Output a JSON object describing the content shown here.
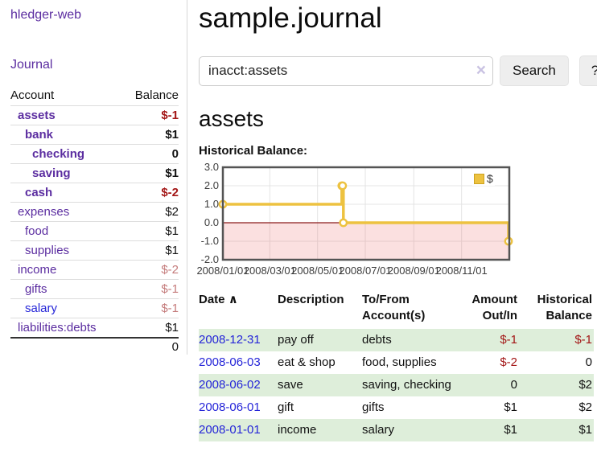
{
  "colors": {
    "accent_purple": "#5b2da0",
    "link_blue": "#2525d8",
    "negative_strong": "#a31616",
    "negative_soft": "#c47a7a",
    "row_stripe_green": "#deeeda",
    "button_bg": "#eeeeee",
    "chart_line": "#edc240",
    "chart_negative_fill": "#f8d8d8",
    "chart_zero_line": "#8b1a1a",
    "chart_border": "#545454"
  },
  "sidebar": {
    "brand": "hledger-web",
    "journal_link": "Journal",
    "account_header": "Account",
    "balance_header": "Balance",
    "accounts": [
      {
        "name": "assets",
        "balance": "$-1"
      },
      {
        "name": "bank",
        "balance": "$1"
      },
      {
        "name": "checking",
        "balance": "0"
      },
      {
        "name": "saving",
        "balance": "$1"
      },
      {
        "name": "cash",
        "balance": "$-2"
      },
      {
        "name": "expenses",
        "balance": "$2"
      },
      {
        "name": "food",
        "balance": "$1"
      },
      {
        "name": "supplies",
        "balance": "$1"
      },
      {
        "name": "income",
        "balance": "$-2"
      },
      {
        "name": "gifts",
        "balance": "$-1"
      },
      {
        "name": "salary",
        "balance": "$-1"
      },
      {
        "name": "liabilities:debts",
        "balance": "$1"
      }
    ],
    "total": "0"
  },
  "main": {
    "title": "sample.journal",
    "search": {
      "query": "inacct:assets",
      "clear_icon": "×",
      "search_button": "Search",
      "help_button": "?"
    },
    "account_heading": "assets",
    "chart_label": "Historical Balance:"
  },
  "chart_data": {
    "type": "line",
    "title": "Historical Balance",
    "step": true,
    "xlim": [
      "2008-01-01",
      "2009-01-01"
    ],
    "ylim": [
      -2,
      3
    ],
    "y_ticks": [
      3.0,
      2.0,
      1.0,
      0.0,
      -1.0,
      -2.0
    ],
    "x_ticks": [
      {
        "x": "2008-01-01",
        "label": "2008/01/01"
      },
      {
        "x": "2008-03-01",
        "label": "2008/03/01"
      },
      {
        "x": "2008-05-01",
        "label": "2008/05/01"
      },
      {
        "x": "2008-07-01",
        "label": "2008/07/01"
      },
      {
        "x": "2008-09-01",
        "label": "2008/09/01"
      },
      {
        "x": "2008-11-01",
        "label": "2008/11/01"
      }
    ],
    "series": [
      {
        "name": "$",
        "points": [
          {
            "x": "2008-01-01",
            "y": 1
          },
          {
            "x": "2008-06-01",
            "y": 2
          },
          {
            "x": "2008-06-02",
            "y": 2
          },
          {
            "x": "2008-06-03",
            "y": 0
          },
          {
            "x": "2008-12-31",
            "y": -1
          }
        ]
      }
    ],
    "legend_position": "top-right",
    "grid": true,
    "negative_region_shaded": true
  },
  "register": {
    "headers": {
      "date": "Date",
      "sort_arrow": "∧",
      "description": "Description",
      "account": "To/From Account(s)",
      "amount": "Amount Out/In",
      "balance": "Historical Balance"
    },
    "rows": [
      {
        "date": "2008-12-31",
        "description": "pay off",
        "account": "debts",
        "amount": "$-1",
        "balance": "$-1"
      },
      {
        "date": "2008-06-03",
        "description": "eat & shop",
        "account": "food, supplies",
        "amount": "$-2",
        "balance": "0"
      },
      {
        "date": "2008-06-02",
        "description": "save",
        "account": "saving, checking",
        "amount": "0",
        "balance": "$2"
      },
      {
        "date": "2008-06-01",
        "description": "gift",
        "account": "gifts",
        "amount": "$1",
        "balance": "$2"
      },
      {
        "date": "2008-01-01",
        "description": "income",
        "account": "salary",
        "amount": "$1",
        "balance": "$1"
      }
    ]
  }
}
